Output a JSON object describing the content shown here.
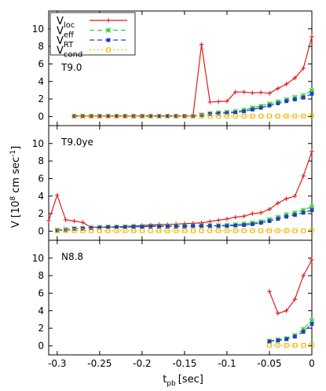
{
  "chart_data": {
    "type": "line",
    "xlabel": "t",
    "xlabel_sub": "pb",
    "xlabel_unit": "[sec]",
    "ylabel": "V [10",
    "ylabel_sup": "8",
    "ylabel_unit": " cm sec",
    "ylabel_unit_sup": "-1",
    "ylabel_close": "]",
    "xlim": [
      -0.31,
      0.0
    ],
    "ylim": [
      -0.5,
      11.5
    ],
    "x_ticks": [
      -0.3,
      -0.25,
      -0.2,
      -0.15,
      -0.1,
      -0.05,
      0
    ],
    "x_tick_labels": [
      "-0.3",
      "-0.25",
      "-0.2",
      "-0.15",
      "-0.1",
      "-0.05",
      "0"
    ],
    "y_ticks": [
      0,
      2,
      4,
      6,
      8,
      10
    ],
    "y_tick_labels": [
      "0",
      "2",
      "4",
      "6",
      "8",
      "10"
    ],
    "legend": {
      "placement": "top-left",
      "entries": [
        {
          "base": "V",
          "sub": "loc",
          "color": "#e41a1c",
          "marker": "plus",
          "dash": ""
        },
        {
          "base": "V",
          "sub": "eff",
          "color": "#32cd32",
          "marker": "x",
          "dash": "6,4"
        },
        {
          "base": "V",
          "sub": "RT",
          "color": "#1f3fbf",
          "marker": "square",
          "dash": "6,4"
        },
        {
          "base": "V",
          "sub": "cond",
          "color": "#f0b400",
          "marker": "open-square",
          "dash": "2,3"
        }
      ]
    },
    "panels": [
      {
        "label": "T9.0",
        "series": {
          "loc": {
            "x": [
              -0.28,
              -0.27,
              -0.26,
              -0.25,
              -0.24,
              -0.23,
              -0.22,
              -0.21,
              -0.2,
              -0.19,
              -0.18,
              -0.17,
              -0.16,
              -0.15,
              -0.14,
              -0.13,
              -0.12,
              -0.11,
              -0.1,
              -0.09,
              -0.08,
              -0.07,
              -0.06,
              -0.05,
              -0.04,
              -0.03,
              -0.02,
              -0.01,
              0.0
            ],
            "y": [
              0.05,
              0.05,
              0.05,
              0.05,
              0.05,
              0.05,
              0.05,
              0.05,
              0.05,
              0.05,
              0.05,
              0.05,
              0.05,
              0.05,
              0.05,
              8.2,
              1.65,
              1.7,
              1.75,
              2.8,
              2.8,
              2.7,
              2.75,
              2.65,
              3.2,
              3.7,
              4.4,
              5.5,
              9.1
            ]
          },
          "eff": {
            "x": [
              -0.28,
              -0.27,
              -0.26,
              -0.25,
              -0.24,
              -0.23,
              -0.22,
              -0.21,
              -0.2,
              -0.19,
              -0.18,
              -0.17,
              -0.16,
              -0.15,
              -0.14,
              -0.13,
              -0.12,
              -0.11,
              -0.1,
              -0.09,
              -0.08,
              -0.07,
              -0.06,
              -0.05,
              -0.04,
              -0.03,
              -0.02,
              -0.01,
              0.0
            ],
            "y": [
              0.05,
              0.05,
              0.05,
              0.05,
              0.05,
              0.05,
              0.05,
              0.05,
              0.05,
              0.05,
              0.05,
              0.05,
              0.05,
              0.05,
              0.05,
              0.2,
              0.35,
              0.45,
              0.5,
              0.6,
              0.75,
              1.0,
              1.2,
              1.45,
              1.7,
              1.95,
              2.2,
              2.4,
              3.0
            ]
          },
          "RT": {
            "x": [
              -0.28,
              -0.27,
              -0.26,
              -0.25,
              -0.24,
              -0.23,
              -0.22,
              -0.21,
              -0.2,
              -0.19,
              -0.18,
              -0.17,
              -0.16,
              -0.15,
              -0.14,
              -0.13,
              -0.12,
              -0.11,
              -0.1,
              -0.09,
              -0.08,
              -0.07,
              -0.06,
              -0.05,
              -0.04,
              -0.03,
              -0.02,
              -0.01,
              0.0
            ],
            "y": [
              0.05,
              0.05,
              0.05,
              0.05,
              0.05,
              0.05,
              0.05,
              0.05,
              0.05,
              0.05,
              0.05,
              0.05,
              0.05,
              0.05,
              0.05,
              0.15,
              0.3,
              0.35,
              0.4,
              0.45,
              0.6,
              0.8,
              1.0,
              1.25,
              1.5,
              1.75,
              1.95,
              2.15,
              2.6
            ]
          },
          "cond": {
            "x": [
              -0.28,
              -0.27,
              -0.26,
              -0.25,
              -0.24,
              -0.23,
              -0.22,
              -0.21,
              -0.2,
              -0.19,
              -0.18,
              -0.17,
              -0.16,
              -0.15,
              -0.14,
              -0.13,
              -0.12,
              -0.11,
              -0.1,
              -0.09,
              -0.08,
              -0.07,
              -0.06,
              -0.05,
              -0.04,
              -0.03,
              -0.02,
              -0.01,
              0.0
            ],
            "y": [
              0.05,
              0.05,
              0.05,
              0.05,
              0.05,
              0.05,
              0.05,
              0.05,
              0.05,
              0.05,
              0.05,
              0.05,
              0.05,
              0.05,
              0.05,
              0.05,
              0.05,
              0.05,
              0.05,
              0.05,
              0.05,
              0.05,
              0.05,
              0.05,
              0.05,
              0.05,
              0.05,
              0.05,
              0.1
            ]
          }
        }
      },
      {
        "label": "T9.0ye",
        "series": {
          "loc": {
            "x": [
              -0.31,
              -0.3,
              -0.29,
              -0.28,
              -0.27,
              -0.26,
              -0.25,
              -0.24,
              -0.23,
              -0.22,
              -0.21,
              -0.2,
              -0.19,
              -0.18,
              -0.17,
              -0.16,
              -0.15,
              -0.14,
              -0.13,
              -0.12,
              -0.11,
              -0.1,
              -0.09,
              -0.08,
              -0.07,
              -0.06,
              -0.05,
              -0.04,
              -0.03,
              -0.02,
              -0.01,
              0.0
            ],
            "y": [
              1.2,
              4.1,
              1.3,
              1.15,
              1.0,
              0.45,
              0.45,
              0.45,
              0.5,
              0.55,
              0.6,
              0.65,
              0.7,
              0.75,
              0.75,
              0.8,
              0.85,
              0.9,
              0.95,
              1.1,
              1.25,
              1.4,
              1.6,
              1.7,
              2.0,
              2.1,
              2.5,
              3.2,
              3.7,
              4.0,
              6.3,
              9.1
            ]
          },
          "eff": {
            "x": [
              -0.3,
              -0.29,
              -0.28,
              -0.27,
              -0.26,
              -0.25,
              -0.24,
              -0.23,
              -0.22,
              -0.21,
              -0.2,
              -0.19,
              -0.18,
              -0.17,
              -0.16,
              -0.15,
              -0.14,
              -0.13,
              -0.12,
              -0.11,
              -0.1,
              -0.09,
              -0.08,
              -0.07,
              -0.06,
              -0.05,
              -0.04,
              -0.03,
              -0.02,
              -0.01,
              0.0
            ],
            "y": [
              0.15,
              0.2,
              0.3,
              0.35,
              0.4,
              0.45,
              0.5,
              0.5,
              0.5,
              0.55,
              0.55,
              0.6,
              0.6,
              0.6,
              0.6,
              0.6,
              0.65,
              0.65,
              0.65,
              0.65,
              0.7,
              0.75,
              0.85,
              0.95,
              1.1,
              1.35,
              1.6,
              1.9,
              2.1,
              2.4,
              2.8
            ]
          },
          "RT": {
            "x": [
              -0.3,
              -0.29,
              -0.28,
              -0.27,
              -0.26,
              -0.25,
              -0.24,
              -0.23,
              -0.22,
              -0.21,
              -0.2,
              -0.19,
              -0.18,
              -0.17,
              -0.16,
              -0.15,
              -0.14,
              -0.13,
              -0.12,
              -0.11,
              -0.1,
              -0.09,
              -0.08,
              -0.07,
              -0.06,
              -0.05,
              -0.04,
              -0.03,
              -0.02,
              -0.01,
              0.0
            ],
            "y": [
              0.1,
              0.15,
              0.25,
              0.3,
              0.35,
              0.4,
              0.45,
              0.45,
              0.45,
              0.5,
              0.5,
              0.55,
              0.55,
              0.55,
              0.55,
              0.55,
              0.6,
              0.6,
              0.6,
              0.6,
              0.6,
              0.65,
              0.7,
              0.8,
              0.95,
              1.15,
              1.4,
              1.65,
              1.85,
              2.1,
              2.4
            ]
          },
          "cond": {
            "x": [
              -0.3,
              -0.29,
              -0.28,
              -0.27,
              -0.26,
              -0.25,
              -0.24,
              -0.23,
              -0.22,
              -0.21,
              -0.2,
              -0.19,
              -0.18,
              -0.17,
              -0.16,
              -0.15,
              -0.14,
              -0.13,
              -0.12,
              -0.11,
              -0.1,
              -0.09,
              -0.08,
              -0.07,
              -0.06,
              -0.05,
              -0.04,
              -0.03,
              -0.02,
              -0.01,
              0.0
            ],
            "y": [
              0.05,
              0.05,
              0.05,
              0.05,
              0.05,
              0.05,
              0.05,
              0.05,
              0.05,
              0.05,
              0.05,
              0.05,
              0.05,
              0.05,
              0.05,
              0.05,
              0.05,
              0.05,
              0.05,
              0.05,
              0.05,
              0.05,
              0.05,
              0.05,
              0.05,
              0.05,
              0.05,
              0.05,
              0.05,
              0.05,
              0.1
            ]
          }
        }
      },
      {
        "label": "N8.8",
        "series": {
          "loc": {
            "x": [
              -0.05,
              -0.04,
              -0.03,
              -0.02,
              -0.01,
              0.0
            ],
            "y": [
              6.2,
              3.7,
              4.0,
              5.3,
              8.0,
              9.8
            ]
          },
          "eff": {
            "x": [
              -0.05,
              -0.04,
              -0.03,
              -0.02,
              -0.01,
              0.0
            ],
            "y": [
              0.55,
              0.7,
              0.85,
              1.2,
              1.9,
              2.9
            ]
          },
          "RT": {
            "x": [
              -0.05,
              -0.04,
              -0.03,
              -0.02,
              -0.01,
              0.0
            ],
            "y": [
              0.5,
              0.6,
              0.75,
              1.05,
              1.6,
              2.5
            ]
          },
          "cond": {
            "x": [
              -0.05,
              -0.04,
              -0.03,
              -0.02,
              -0.01,
              0.0
            ],
            "y": [
              0.05,
              0.05,
              0.05,
              0.05,
              0.05,
              0.1
            ]
          }
        }
      }
    ]
  }
}
